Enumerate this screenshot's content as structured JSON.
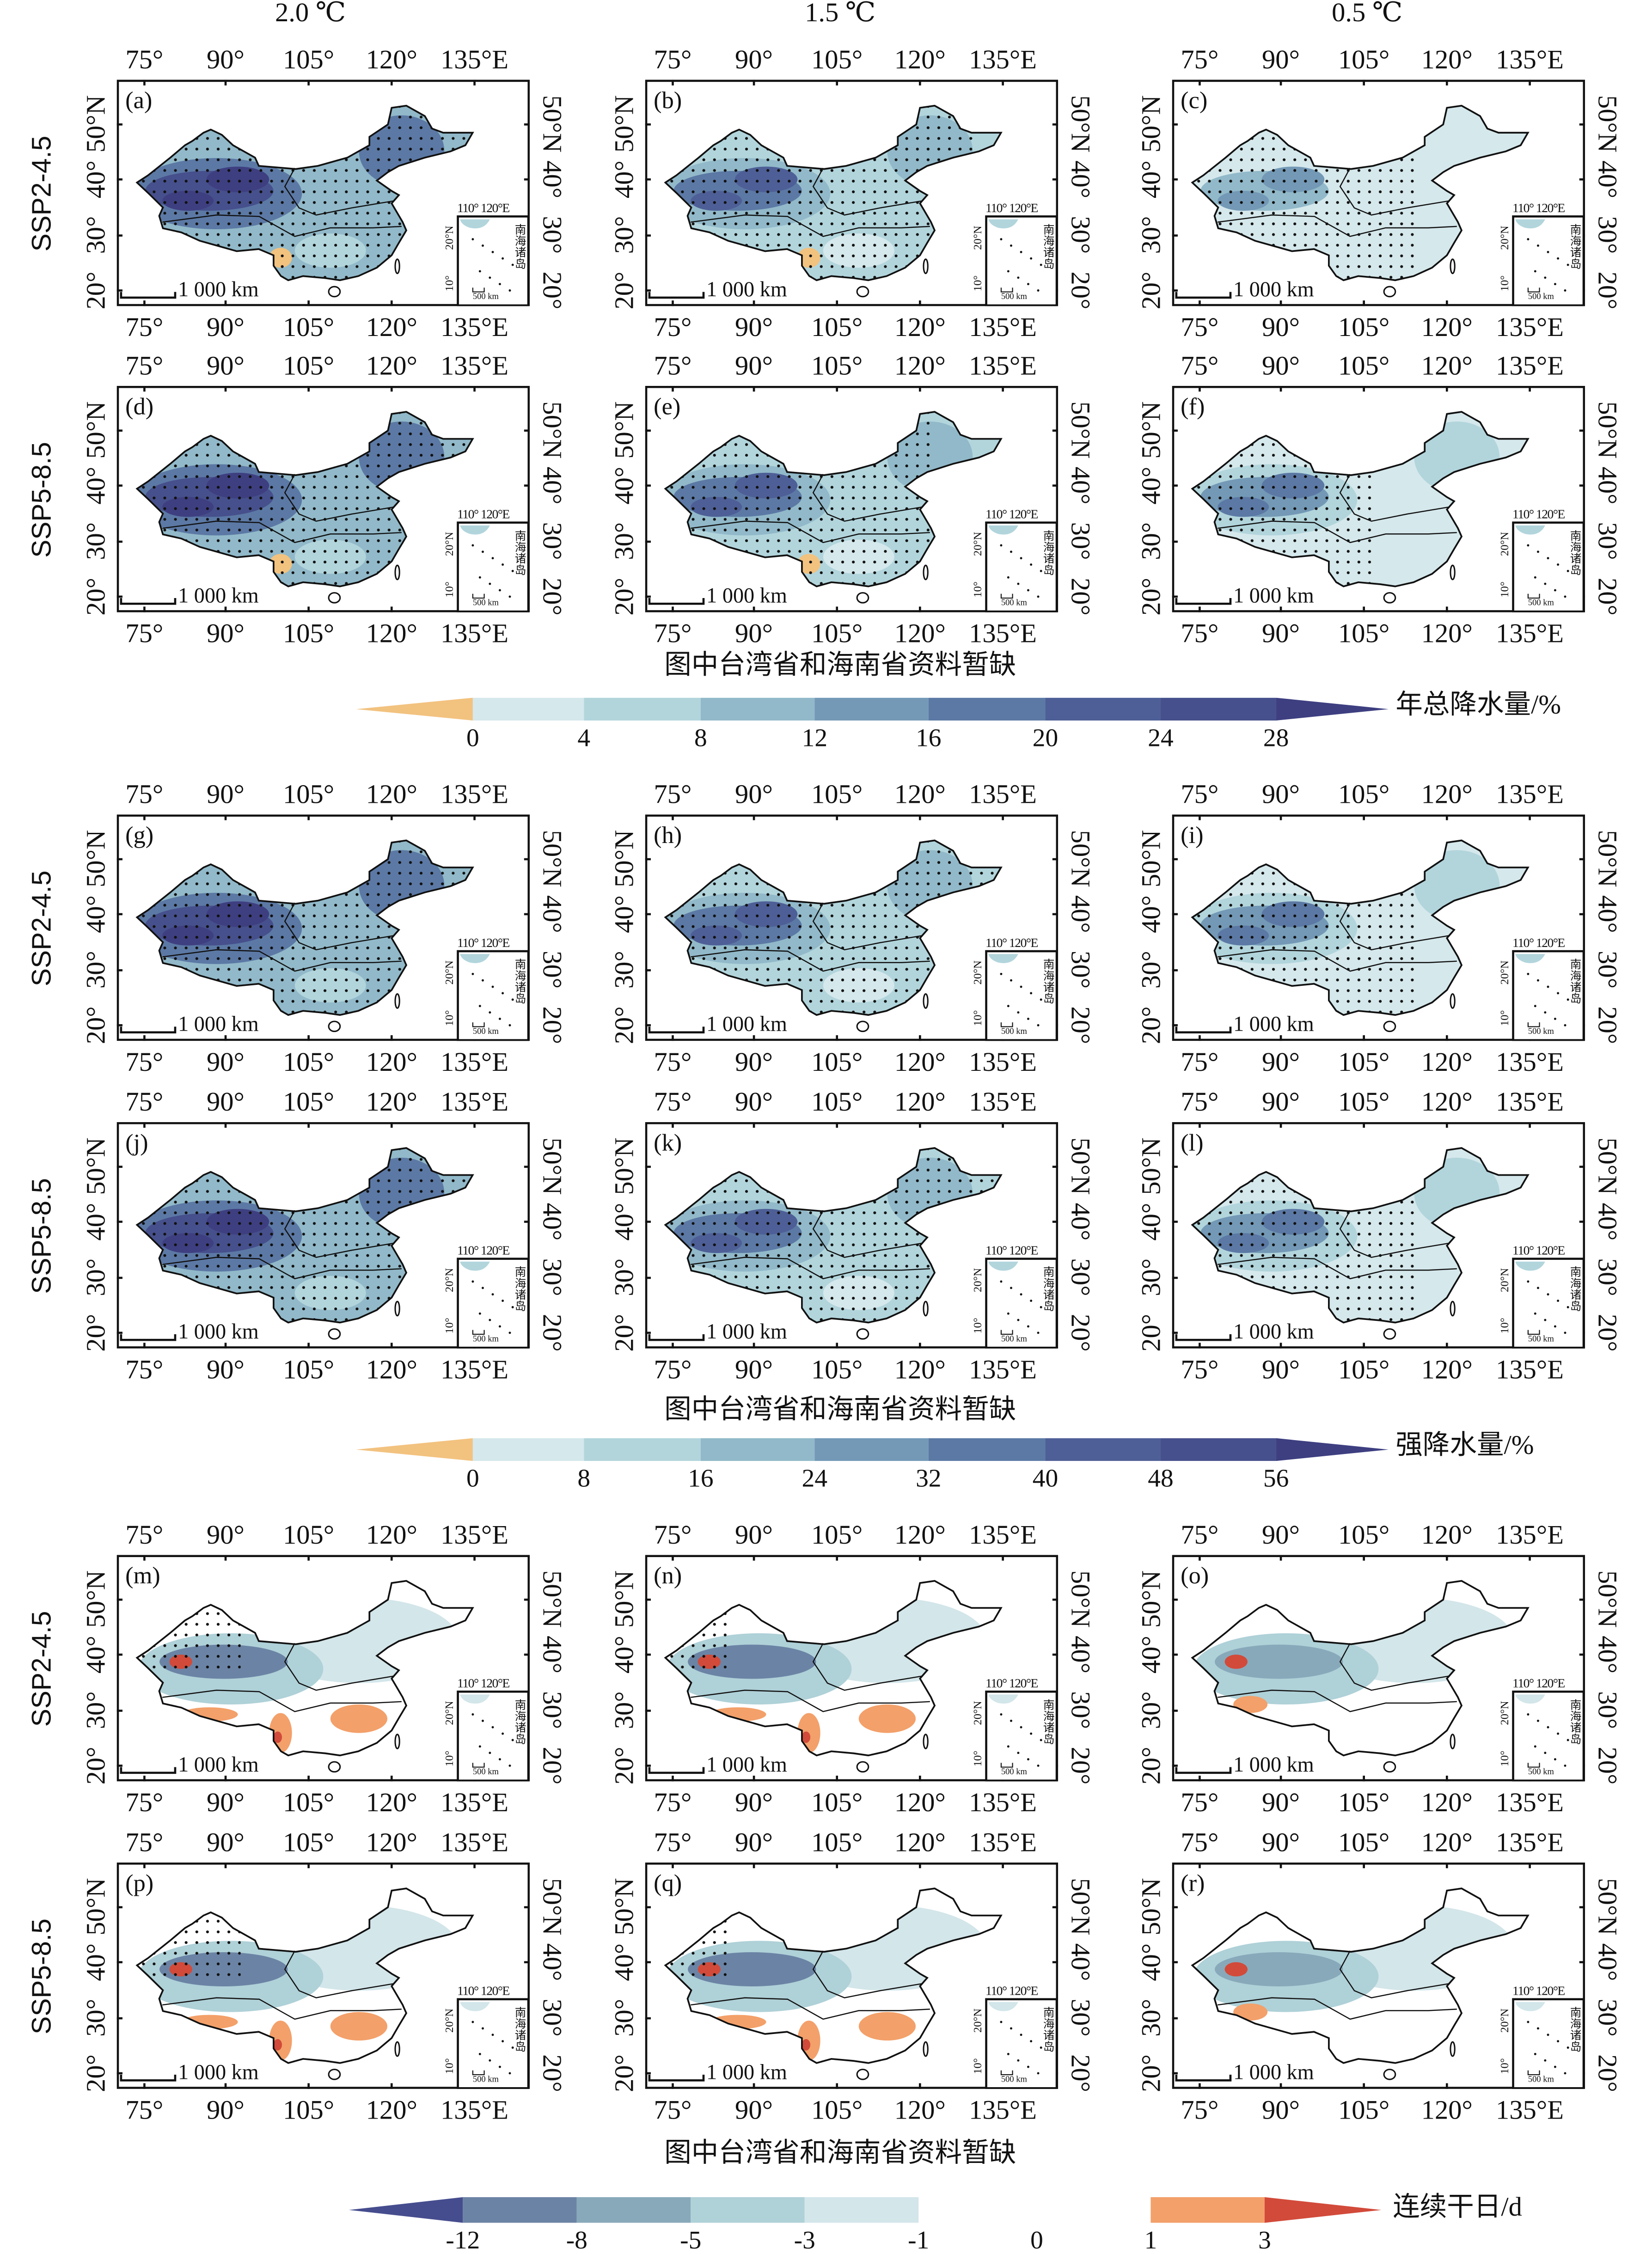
{
  "column_headers": [
    "2.0 ℃",
    "1.5 ℃",
    "0.5 ℃"
  ],
  "row_labels": [
    "SSP2-4.5",
    "SSP5-8.5",
    "SSP2-4.5",
    "SSP5-8.5",
    "SSP2-4.5",
    "SSP5-8.5"
  ],
  "lon_ticks": [
    "75°",
    "90°",
    "105°",
    "120°",
    "135°E"
  ],
  "lat_ticks": [
    "50°N",
    "40°",
    "30°",
    "20°"
  ],
  "map_common": {
    "scale_label": "1 000 km",
    "inset_lon": "110° 120°E",
    "inset_lat": [
      "20°N",
      "10°"
    ],
    "inset_scale": "500 km",
    "inset_name": "南海诸岛"
  },
  "captions": [
    "图中台湾省和海南省资料暂缺",
    "图中台湾省和海南省资料暂缺",
    "图中台湾省和海南省资料暂缺"
  ],
  "chart_data": [
    {
      "type": "heatmap",
      "variable": "年总降水量/%",
      "panels": [
        {
          "label": "(a)",
          "scenario": "SSP2-4.5",
          "warming": "2.0 ℃",
          "base_level": 3,
          "peak_level": 8,
          "dry_patch": true,
          "stippled": 1.0
        },
        {
          "label": "(b)",
          "scenario": "SSP2-4.5",
          "warming": "1.5 ℃",
          "base_level": 2,
          "peak_level": 6,
          "dry_patch": true,
          "stippled": 0.8
        },
        {
          "label": "(c)",
          "scenario": "SSP2-4.5",
          "warming": "0.5 ℃",
          "base_level": 1,
          "peak_level": 4,
          "dry_patch": false,
          "stippled": 0.6
        },
        {
          "label": "(d)",
          "scenario": "SSP5-8.5",
          "warming": "2.0 ℃",
          "base_level": 3,
          "peak_level": 8,
          "dry_patch": true,
          "stippled": 1.0
        },
        {
          "label": "(e)",
          "scenario": "SSP5-8.5",
          "warming": "1.5 ℃",
          "base_level": 2,
          "peak_level": 6,
          "dry_patch": true,
          "stippled": 0.7
        },
        {
          "label": "(f)",
          "scenario": "SSP5-8.5",
          "warming": "0.5 ℃",
          "base_level": 1,
          "peak_level": 5,
          "dry_patch": false,
          "stippled": 0.5
        }
      ],
      "colorbar": {
        "title": "年总降水量/%",
        "ticks": [
          "0",
          "4",
          "8",
          "12",
          "16",
          "20",
          "24",
          "28"
        ],
        "colors": [
          "#f2c27f",
          "#d5e8ec",
          "#b2d5dc",
          "#91b9c9",
          "#7399b6",
          "#5c79a5",
          "#4e5f97",
          "#46508c",
          "#3e3f81"
        ]
      }
    },
    {
      "type": "heatmap",
      "variable": "强降水量/%",
      "panels": [
        {
          "label": "(g)",
          "scenario": "SSP2-4.5",
          "warming": "2.0 ℃",
          "base_level": 3,
          "peak_level": 8,
          "dry_patch": false,
          "stippled": 1.0
        },
        {
          "label": "(h)",
          "scenario": "SSP2-4.5",
          "warming": "1.5 ℃",
          "base_level": 2,
          "peak_level": 6,
          "dry_patch": false,
          "stippled": 1.0
        },
        {
          "label": "(i)",
          "scenario": "SSP2-4.5",
          "warming": "0.5 ℃",
          "base_level": 1,
          "peak_level": 5,
          "dry_patch": false,
          "stippled": 0.6
        },
        {
          "label": "(j)",
          "scenario": "SSP5-8.5",
          "warming": "2.0 ℃",
          "base_level": 3,
          "peak_level": 8,
          "dry_patch": false,
          "stippled": 1.0
        },
        {
          "label": "(k)",
          "scenario": "SSP5-8.5",
          "warming": "1.5 ℃",
          "base_level": 2,
          "peak_level": 6,
          "dry_patch": false,
          "stippled": 1.0
        },
        {
          "label": "(l)",
          "scenario": "SSP5-8.5",
          "warming": "0.5 ℃",
          "base_level": 1,
          "peak_level": 5,
          "dry_patch": false,
          "stippled": 0.6
        }
      ],
      "colorbar": {
        "title": "强降水量/%",
        "ticks": [
          "0",
          "8",
          "16",
          "24",
          "32",
          "40",
          "48",
          "56"
        ],
        "colors": [
          "#f2c27f",
          "#d5e8ec",
          "#b2d5dc",
          "#91b9c9",
          "#7399b6",
          "#5c79a5",
          "#4e5f97",
          "#46508c",
          "#3e3f81"
        ]
      }
    },
    {
      "type": "heatmap",
      "variable": "连续干日/d",
      "panels": [
        {
          "label": "(m)",
          "scenario": "SSP2-4.5",
          "warming": "2.0 ℃",
          "west_level": 1,
          "south_positive": true,
          "stippled": 0.3
        },
        {
          "label": "(n)",
          "scenario": "SSP2-4.5",
          "warming": "1.5 ℃",
          "west_level": 1,
          "south_positive": true,
          "stippled": 0.2
        },
        {
          "label": "(o)",
          "scenario": "SSP2-4.5",
          "warming": "0.5 ℃",
          "west_level": 2,
          "south_positive": false,
          "stippled": 0.0
        },
        {
          "label": "(p)",
          "scenario": "SSP5-8.5",
          "warming": "2.0 ℃",
          "west_level": 1,
          "south_positive": true,
          "stippled": 0.3
        },
        {
          "label": "(q)",
          "scenario": "SSP5-8.5",
          "warming": "1.5 ℃",
          "west_level": 1,
          "south_positive": true,
          "stippled": 0.2
        },
        {
          "label": "(r)",
          "scenario": "SSP5-8.5",
          "warming": "0.5 ℃",
          "west_level": 2,
          "south_positive": false,
          "stippled": 0.0
        }
      ],
      "colorbar": {
        "title": "连续干日/d",
        "ticks": [
          "-12",
          "-8",
          "-5",
          "-3",
          "-1",
          "0",
          "1",
          "3"
        ],
        "colors": [
          "#464d8e",
          "#6b84a5",
          "#88a9ba",
          "#afd1d8",
          "#d3e6ea",
          "#ffffff",
          "#f3a06a",
          "#d24a3a"
        ]
      }
    }
  ]
}
